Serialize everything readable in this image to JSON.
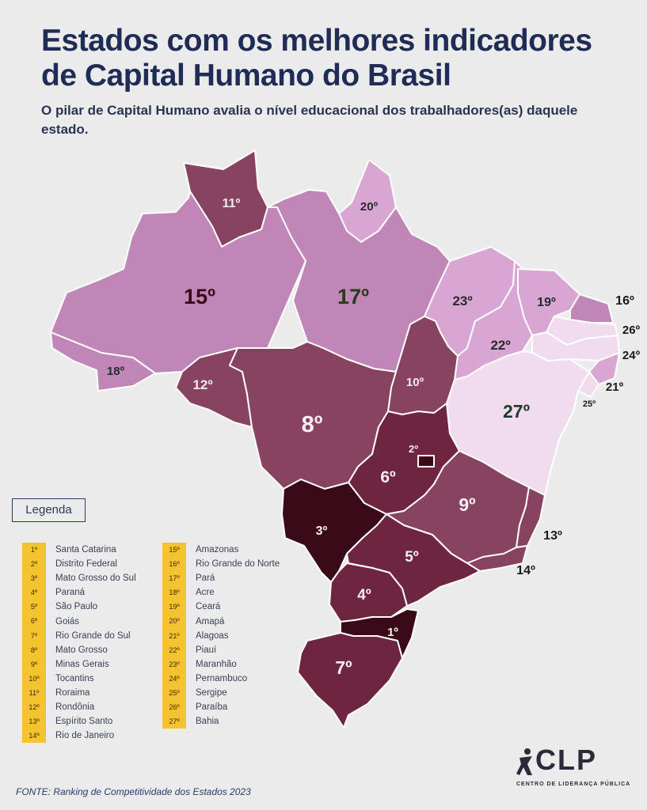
{
  "header": {
    "title_line1": "Estados com os melhores indicadores",
    "title_line2": "de Capital Humano do Brasil",
    "subtitle": "O pilar de Capital Humano avalia o nível educacional dos trabalhadores(as) daquele estado."
  },
  "colors": {
    "rank_1_3": "#3a0a18",
    "rank_4_7": "#6e2540",
    "rank_8_12": "#884360",
    "rank_15_18": "#c186b8",
    "rank_19_23": "#d9a6d3",
    "rank_24_27": "#f1dcef",
    "badge": "#f5c330"
  },
  "map": {
    "labels": {
      "AM": "15º",
      "PA": "17º",
      "RR": "11º",
      "AP": "20º",
      "AC": "18º",
      "RO": "12º",
      "MT": "8º",
      "TO": "10º",
      "MA": "23º",
      "PI": "22º",
      "CE": "19º",
      "RN": "16º",
      "PB": "26º",
      "PE": "24º",
      "AL": "21º",
      "SE": "25º",
      "BA": "27º",
      "GO": "6º",
      "DF": "2º",
      "MG": "9º",
      "ES": "13º",
      "RJ": "14º",
      "MS": "3º",
      "SP": "5º",
      "PR": "4º",
      "SC": "1º",
      "RS": "7º"
    }
  },
  "legend": {
    "title": "Legenda",
    "col1": [
      {
        "rank": "1º",
        "state": "Santa Catarina"
      },
      {
        "rank": "2º",
        "state": "Distrito Federal"
      },
      {
        "rank": "3º",
        "state": "Mato Grosso do Sul"
      },
      {
        "rank": "4º",
        "state": "Paraná"
      },
      {
        "rank": "5º",
        "state": "São Paulo"
      },
      {
        "rank": "6º",
        "state": "Goiás"
      },
      {
        "rank": "7º",
        "state": "Rio Grande do Sul"
      },
      {
        "rank": "8º",
        "state": "Mato Grosso"
      },
      {
        "rank": "9º",
        "state": "Minas Gerais"
      },
      {
        "rank": "10º",
        "state": "Tocantins"
      },
      {
        "rank": "11º",
        "state": "Roraima"
      },
      {
        "rank": "12º",
        "state": "Rondônia"
      },
      {
        "rank": "13º",
        "state": "Espírito Santo"
      },
      {
        "rank": "14º",
        "state": "Rio de Janeiro"
      }
    ],
    "col2": [
      {
        "rank": "15º",
        "state": "Amazonas"
      },
      {
        "rank": "16º",
        "state": "Rio Grande do Norte"
      },
      {
        "rank": "17º",
        "state": "Pará"
      },
      {
        "rank": "18º",
        "state": "Acre"
      },
      {
        "rank": "19º",
        "state": "Ceará"
      },
      {
        "rank": "20º",
        "state": "Amapá"
      },
      {
        "rank": "21º",
        "state": "Alagoas"
      },
      {
        "rank": "22º",
        "state": "Piauí"
      },
      {
        "rank": "23º",
        "state": "Maranhão"
      },
      {
        "rank": "24º",
        "state": "Pernambuco"
      },
      {
        "rank": "25º",
        "state": "Sergipe"
      },
      {
        "rank": "26º",
        "state": "Paraíba"
      },
      {
        "rank": "27º",
        "state": "Bahia"
      }
    ]
  },
  "footer": {
    "source": "FONTE: Ranking de Competitividade dos Estados 2023",
    "logo_text": "CLP",
    "logo_tagline": "CENTRO DE LIDERANÇA PÚBLICA"
  }
}
